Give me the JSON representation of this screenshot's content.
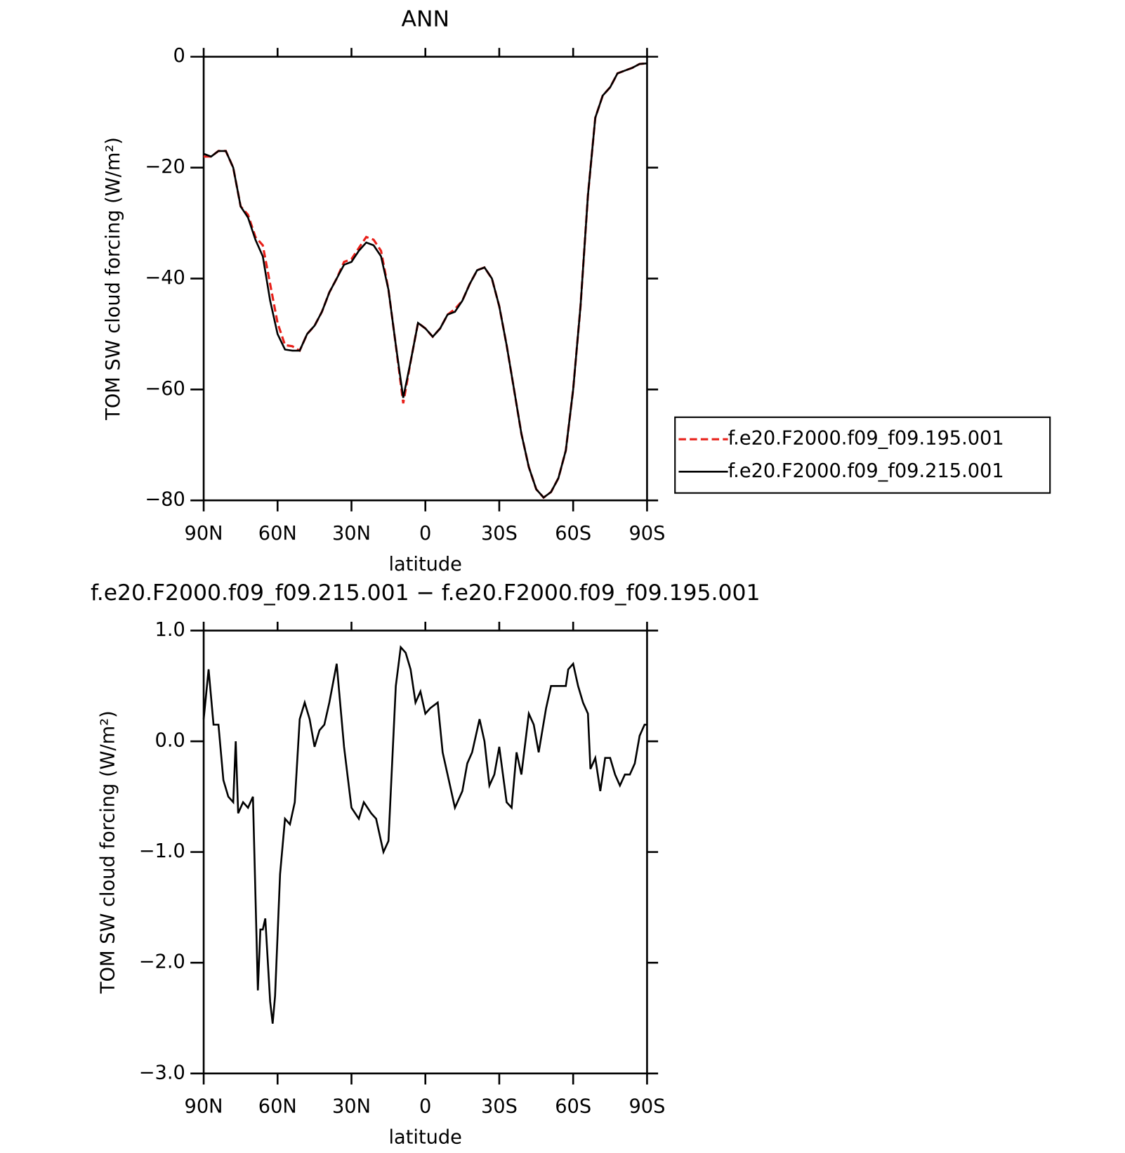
{
  "chart_data": [
    {
      "type": "line",
      "title": "ANN",
      "x_label": "latitude",
      "y_label": "TOM SW cloud forcing (W/m²)",
      "x": [
        90,
        87,
        84,
        81,
        78,
        75,
        72,
        69,
        66,
        63,
        60,
        57,
        54,
        51,
        48,
        45,
        42,
        39,
        36,
        33,
        30,
        27,
        24,
        21,
        18,
        15,
        12,
        9,
        6,
        3,
        0,
        -3,
        -6,
        -9,
        -12,
        -15,
        -18,
        -21,
        -24,
        -27,
        -30,
        -33,
        -36,
        -39,
        -42,
        -45,
        -48,
        -51,
        -54,
        -57,
        -60,
        -63,
        -66,
        -69,
        -72,
        -75,
        -78,
        -81,
        -84,
        -87,
        -90
      ],
      "series": [
        {
          "name": "f.e20.F2000.f09_f09.195.001",
          "color": "#e8201a",
          "dash": true,
          "values": [
            -18,
            -18,
            -17,
            -17,
            -20,
            -27,
            -28.5,
            -32.5,
            -34,
            -41,
            -48,
            -52,
            -52.2,
            -53,
            -50,
            -48.5,
            -46,
            -42.5,
            -40,
            -37,
            -36.5,
            -34.5,
            -32.5,
            -33,
            -35,
            -42,
            -52,
            -62.5,
            -55,
            -48,
            -49,
            -50.5,
            -49,
            -46.5,
            -45.5,
            -44,
            -41,
            -38.5,
            -38,
            -40,
            -45,
            -52,
            -60,
            -68,
            -74,
            -78,
            -79.5,
            -78.5,
            -76,
            -71,
            -60,
            -45,
            -25,
            -11,
            -7,
            -5.5,
            -3,
            -2.5,
            -2,
            -1.3,
            -1.2
          ]
        },
        {
          "name": "f.e20.F2000.f09_f09.215.001",
          "color": "#000000",
          "dash": false,
          "values": [
            -17.5,
            -18,
            -17,
            -17,
            -20,
            -27,
            -29,
            -33,
            -36,
            -44,
            -50,
            -52.8,
            -53,
            -53,
            -50,
            -48.5,
            -46,
            -42.5,
            -40,
            -37.5,
            -37,
            -35,
            -33.5,
            -34,
            -36,
            -42,
            -52,
            -61.5,
            -55,
            -48,
            -49,
            -50.5,
            -49,
            -46.5,
            -46,
            -44,
            -41,
            -38.5,
            -38,
            -40,
            -45,
            -52,
            -60,
            -68,
            -74,
            -78,
            -79.5,
            -78.5,
            -76,
            -71,
            -60,
            -45,
            -25,
            -11,
            -7,
            -5.5,
            -3,
            -2.5,
            -2,
            -1.3,
            -1.2
          ]
        }
      ],
      "xlim": [
        90,
        -90
      ],
      "ylim": [
        -80,
        0
      ],
      "xticks": [
        {
          "value": 90,
          "label": "90N"
        },
        {
          "value": 60,
          "label": "60N"
        },
        {
          "value": 30,
          "label": "30N"
        },
        0,
        {
          "value": -30,
          "label": "30S"
        },
        {
          "value": -60,
          "label": "60S"
        },
        {
          "value": -90,
          "label": "90S"
        }
      ],
      "yticks": [
        0,
        {
          "value": -20,
          "label": "−20"
        },
        {
          "value": -40,
          "label": "−40"
        },
        {
          "value": -60,
          "label": "−60"
        },
        {
          "value": -80,
          "label": "−80"
        }
      ],
      "legend": "right"
    },
    {
      "type": "line",
      "title": "f.e20.F2000.f09_f09.215.001 − f.e20.F2000.f09_f09.195.001",
      "x_label": "latitude",
      "y_label": "TOM SW cloud forcing (W/m²)",
      "x": [
        90,
        88,
        86,
        84,
        82,
        80,
        78,
        77,
        76,
        74,
        72,
        70,
        68,
        67,
        66,
        65,
        63,
        62,
        61,
        59,
        57,
        55,
        53,
        51,
        49,
        47,
        45,
        43,
        41,
        39,
        36,
        33,
        30,
        27,
        25,
        22,
        20,
        17,
        15,
        12,
        10,
        8,
        6,
        4,
        2,
        0,
        -2,
        -5,
        -7,
        -9,
        -12,
        -15,
        -17,
        -19,
        -22,
        -24,
        -26,
        -28,
        -30,
        -33,
        -35,
        -37,
        -39,
        -42,
        -44,
        -46,
        -49,
        -51,
        -53,
        -55,
        -57,
        -58,
        -60,
        -62,
        -64,
        -66,
        -67,
        -69,
        -71,
        -73,
        -75,
        -77,
        -79,
        -81,
        -83,
        -85,
        -87,
        -89,
        -90
      ],
      "series": [
        {
          "color": "#000000",
          "dash": false,
          "values": [
            0.2,
            0.65,
            0.15,
            0.15,
            -0.35,
            -0.5,
            -0.55,
            0.0,
            -0.65,
            -0.55,
            -0.6,
            -0.5,
            -2.25,
            -1.7,
            -1.7,
            -1.6,
            -2.35,
            -2.55,
            -2.3,
            -1.2,
            -0.7,
            -0.75,
            -0.55,
            0.2,
            0.35,
            0.2,
            -0.05,
            0.1,
            0.15,
            0.35,
            0.7,
            -0.05,
            -0.6,
            -0.7,
            -0.55,
            -0.65,
            -0.7,
            -1.0,
            -0.9,
            0.5,
            0.85,
            0.8,
            0.65,
            0.35,
            0.45,
            0.25,
            0.3,
            0.35,
            -0.1,
            -0.3,
            -0.6,
            -0.45,
            -0.2,
            -0.1,
            0.2,
            0.0,
            -0.4,
            -0.3,
            -0.05,
            -0.55,
            -0.6,
            -0.1,
            -0.3,
            0.25,
            0.15,
            -0.1,
            0.3,
            0.5,
            0.5,
            0.5,
            0.5,
            0.65,
            0.7,
            0.5,
            0.35,
            0.25,
            -0.25,
            -0.15,
            -0.45,
            -0.15,
            -0.15,
            -0.3,
            -0.4,
            -0.3,
            -0.3,
            -0.2,
            0.05,
            0.15,
            0.15
          ]
        }
      ],
      "xlim": [
        90,
        -90
      ],
      "ylim": [
        -3,
        1
      ],
      "xticks": [
        {
          "value": 90,
          "label": "90N"
        },
        {
          "value": 60,
          "label": "60N"
        },
        {
          "value": 30,
          "label": "30N"
        },
        0,
        {
          "value": -30,
          "label": "30S"
        },
        {
          "value": -60,
          "label": "60S"
        },
        {
          "value": -90,
          "label": "90S"
        }
      ],
      "yticks": [
        {
          "value": 1,
          "label": "1.0"
        },
        {
          "value": 0,
          "label": "0.0"
        },
        {
          "value": -1,
          "label": "−1.0"
        },
        {
          "value": -2,
          "label": "−2.0"
        },
        {
          "value": -3,
          "label": "−3.0"
        }
      ]
    }
  ]
}
